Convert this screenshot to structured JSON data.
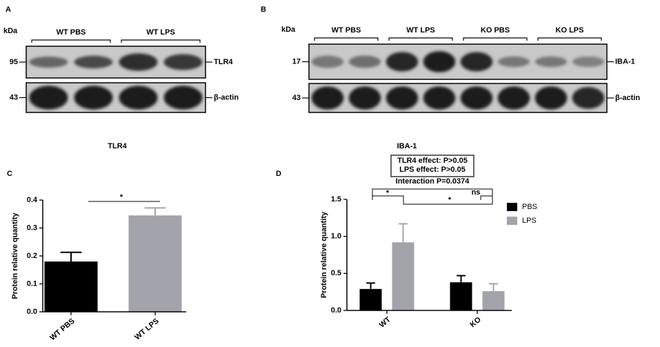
{
  "blots": [
    {
      "letter": "A",
      "unit": "kDa",
      "groups": [
        "WT PBS",
        "WT LPS"
      ],
      "rows": [
        {
          "marker": "95",
          "label": "TLR4"
        },
        {
          "marker": "43",
          "label": "β-actin"
        }
      ]
    },
    {
      "letter": "B",
      "unit": "kDa",
      "groups": [
        "WT PBS",
        "WT LPS",
        "KO PBS",
        "KO LPS"
      ],
      "rows": [
        {
          "marker": "17",
          "label": "IBA-1"
        },
        {
          "marker": "43",
          "label": "β-actin"
        }
      ]
    }
  ],
  "chart_data": [
    {
      "type": "bar",
      "panel_label": "C",
      "title": "TLR4",
      "ylabel": "Protein relative quantity",
      "categories": [
        "WT PBS",
        "WT LPS"
      ],
      "series": [
        {
          "name": null,
          "colors": [
            "#000000",
            "#a3a3ab"
          ],
          "values": [
            0.18,
            0.345
          ],
          "errors": [
            0.033,
            0.027
          ]
        }
      ],
      "ylim": [
        0,
        0.4
      ],
      "yticks": [
        {
          "value": 0,
          "label": "0.0"
        },
        0.1,
        0.2,
        0.3,
        0.4
      ],
      "annotations": [
        "*"
      ]
    },
    {
      "type": "bar",
      "panel_label": "D",
      "title": "IBA-1",
      "ylabel": "Protein relative quantity",
      "categories": [
        "WT",
        "KO"
      ],
      "series": [
        {
          "name": "PBS",
          "color": "#000000",
          "values": [
            0.29,
            0.38
          ],
          "errors": [
            0.08,
            0.09
          ]
        },
        {
          "name": "LPS",
          "color": "#a3a3ab",
          "values": [
            0.92,
            0.26
          ],
          "errors": [
            0.25,
            0.1
          ]
        }
      ],
      "ylim": [
        0,
        1.5
      ],
      "yticks": [
        {
          "value": 0,
          "label": "0.0"
        },
        0.5,
        {
          "value": 1,
          "label": "1.0"
        },
        1.5
      ],
      "annotations": [
        "TLR4 effect: P>0.05",
        "LPS  effect: P>0.05",
        "Interaction P=0.0374",
        "*",
        "*",
        "ns"
      ]
    }
  ]
}
